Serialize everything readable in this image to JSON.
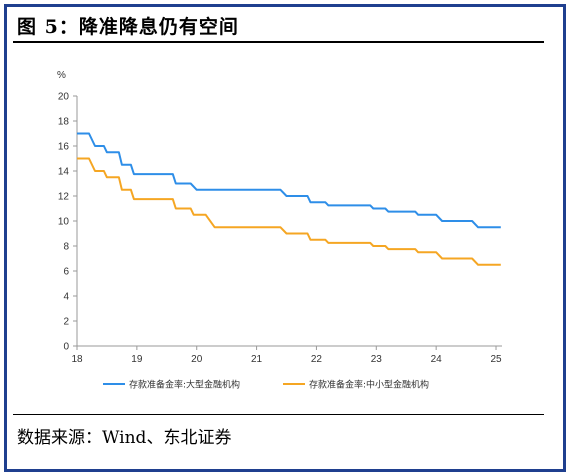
{
  "figure": {
    "title": "图 5：降准降息仍有空间",
    "source": "数据来源：Wind、东北证券"
  },
  "chart_data": {
    "type": "line",
    "title": "",
    "ylabel": "%",
    "xlabel": "",
    "xlim": [
      18,
      25.1
    ],
    "ylim": [
      0,
      20
    ],
    "x_ticks": [
      "18",
      "19",
      "20",
      "21",
      "22",
      "23",
      "24",
      "25"
    ],
    "y_ticks": [
      "0",
      "2",
      "4",
      "6",
      "8",
      "10",
      "12",
      "14",
      "16",
      "18",
      "20"
    ],
    "grid": false,
    "legend_position": "bottom",
    "series": [
      {
        "name": "存款准备金率:大型金融机构",
        "color": "#2e8ee8",
        "points": [
          [
            18.0,
            17.0
          ],
          [
            18.2,
            17.0
          ],
          [
            18.3,
            16.0
          ],
          [
            18.45,
            16.0
          ],
          [
            18.5,
            15.5
          ],
          [
            18.7,
            15.5
          ],
          [
            18.75,
            14.5
          ],
          [
            18.9,
            14.5
          ],
          [
            18.95,
            13.75
          ],
          [
            19.6,
            13.75
          ],
          [
            19.65,
            13.0
          ],
          [
            19.9,
            13.0
          ],
          [
            20.0,
            12.5
          ],
          [
            21.4,
            12.5
          ],
          [
            21.5,
            12.0
          ],
          [
            21.85,
            12.0
          ],
          [
            21.9,
            11.5
          ],
          [
            22.15,
            11.5
          ],
          [
            22.2,
            11.25
          ],
          [
            22.9,
            11.25
          ],
          [
            22.95,
            11.0
          ],
          [
            23.15,
            11.0
          ],
          [
            23.2,
            10.75
          ],
          [
            23.65,
            10.75
          ],
          [
            23.7,
            10.5
          ],
          [
            24.0,
            10.5
          ],
          [
            24.1,
            10.0
          ],
          [
            24.6,
            10.0
          ],
          [
            24.7,
            9.5
          ],
          [
            25.08,
            9.5
          ]
        ]
      },
      {
        "name": "存款准备金率:中小型金融机构",
        "color": "#f5a623",
        "points": [
          [
            18.0,
            15.0
          ],
          [
            18.2,
            15.0
          ],
          [
            18.3,
            14.0
          ],
          [
            18.45,
            14.0
          ],
          [
            18.5,
            13.5
          ],
          [
            18.7,
            13.5
          ],
          [
            18.75,
            12.5
          ],
          [
            18.9,
            12.5
          ],
          [
            18.95,
            11.75
          ],
          [
            19.6,
            11.75
          ],
          [
            19.65,
            11.0
          ],
          [
            19.9,
            11.0
          ],
          [
            19.95,
            10.5
          ],
          [
            20.15,
            10.5
          ],
          [
            20.3,
            9.5
          ],
          [
            21.4,
            9.5
          ],
          [
            21.5,
            9.0
          ],
          [
            21.85,
            9.0
          ],
          [
            21.9,
            8.5
          ],
          [
            22.15,
            8.5
          ],
          [
            22.2,
            8.25
          ],
          [
            22.9,
            8.25
          ],
          [
            22.95,
            8.0
          ],
          [
            23.15,
            8.0
          ],
          [
            23.2,
            7.75
          ],
          [
            23.65,
            7.75
          ],
          [
            23.7,
            7.5
          ],
          [
            24.0,
            7.5
          ],
          [
            24.1,
            7.0
          ],
          [
            24.6,
            7.0
          ],
          [
            24.7,
            6.5
          ],
          [
            25.08,
            6.5
          ]
        ]
      }
    ]
  }
}
